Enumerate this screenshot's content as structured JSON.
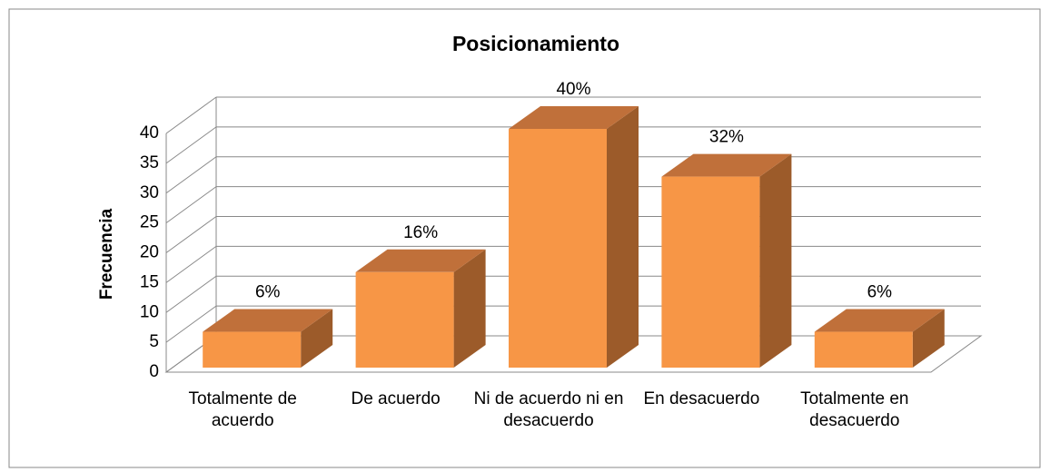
{
  "chart_data": {
    "type": "bar3d",
    "title": "Posicionamiento",
    "y_label": "Frecuencia",
    "categories": [
      "Totalmente de acuerdo",
      "De acuerdo",
      "Ni de acuerdo ni en desacuerdo",
      "En desacuerdo",
      "Totalmente en desacuerdo"
    ],
    "values": [
      6,
      16,
      40,
      32,
      6
    ],
    "value_labels": [
      "6%",
      "16%",
      "40%",
      "32%",
      "6%"
    ],
    "color": "#f79646",
    "ylim": [
      0,
      40
    ],
    "yticks": [
      0,
      5,
      10,
      15,
      20,
      25,
      30,
      35,
      40
    ],
    "grid": true
  }
}
